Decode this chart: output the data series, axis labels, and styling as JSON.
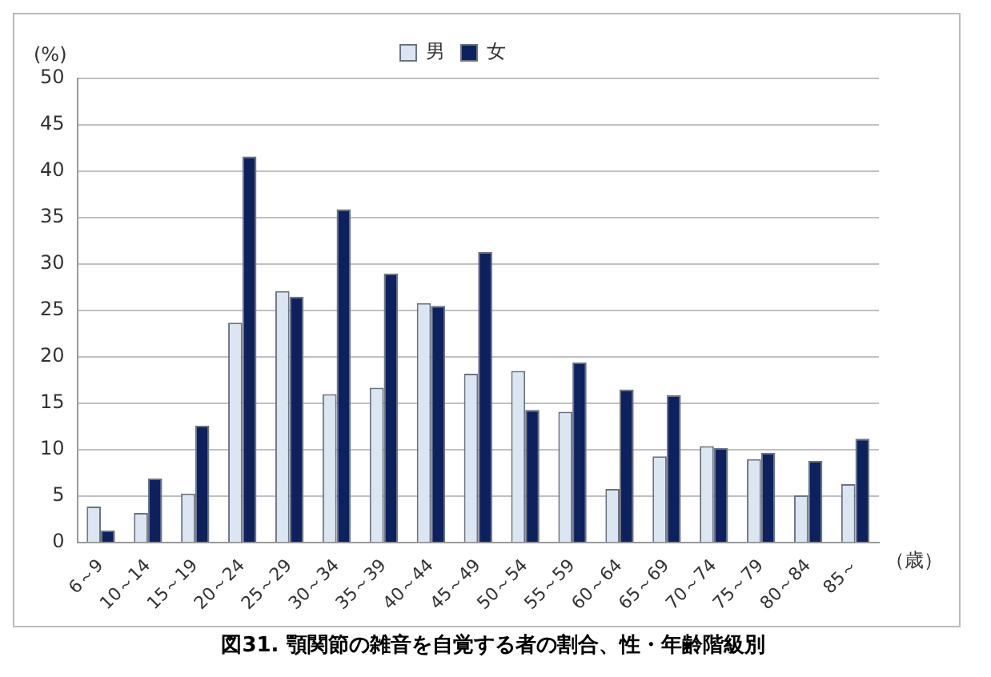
{
  "chart_data": {
    "type": "bar",
    "title": "図31.  顎関節の雑音を自覚する者の割合、性・年齢階級別",
    "ylabel": "(%)",
    "xlabel": "（歳）",
    "categories": [
      "6～9",
      "10～14",
      "15～19",
      "20～24",
      "25～29",
      "30～34",
      "35～39",
      "40～44",
      "45～49",
      "50～54",
      "55～59",
      "60～64",
      "65～69",
      "70～74",
      "75～79",
      "80～84",
      "85～"
    ],
    "series": [
      {
        "name": "男",
        "color": "#dce6f2",
        "values": [
          3.9,
          3.2,
          5.3,
          23.7,
          27.1,
          16.0,
          16.7,
          25.8,
          18.2,
          18.5,
          14.1,
          5.8,
          9.3,
          10.4,
          9.0,
          5.1,
          6.3
        ]
      },
      {
        "name": "女",
        "color": "#0c215e",
        "values": [
          1.3,
          6.9,
          12.6,
          41.6,
          26.5,
          35.9,
          29.0,
          25.5,
          31.3,
          14.3,
          19.4,
          16.5,
          15.9,
          10.2,
          9.7,
          8.8,
          11.2
        ]
      }
    ],
    "ylim": [
      0,
      50
    ],
    "yticks": [
      0,
      5,
      10,
      15,
      20,
      25,
      30,
      35,
      40,
      45,
      50
    ],
    "grid": "y",
    "legend": "top"
  }
}
